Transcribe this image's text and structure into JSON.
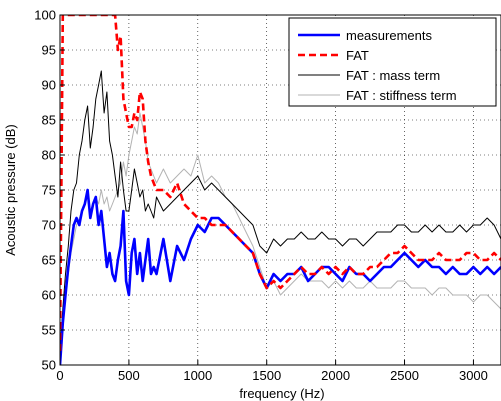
{
  "chart_data": {
    "type": "line",
    "title": "",
    "xlabel": "frequency (Hz)",
    "ylabel": "Acoustic pressure (dB)",
    "xlim": [
      0,
      3200
    ],
    "ylim": [
      50,
      100
    ],
    "xticks": [
      0,
      500,
      1000,
      1500,
      2000,
      2500,
      3000
    ],
    "yticks": [
      50,
      55,
      60,
      65,
      70,
      75,
      80,
      85,
      90,
      95,
      100
    ],
    "grid": true,
    "legend_position": "top-right",
    "series": [
      {
        "name": "measurements",
        "color": "#0000ff",
        "style": "solid-thick",
        "x": [
          0,
          20,
          40,
          60,
          80,
          100,
          120,
          140,
          160,
          180,
          200,
          220,
          240,
          260,
          280,
          300,
          320,
          340,
          360,
          380,
          400,
          420,
          440,
          460,
          480,
          500,
          520,
          540,
          560,
          580,
          600,
          620,
          640,
          660,
          680,
          700,
          750,
          800,
          850,
          900,
          950,
          1000,
          1050,
          1100,
          1150,
          1200,
          1250,
          1300,
          1350,
          1400,
          1450,
          1500,
          1550,
          1600,
          1650,
          1700,
          1750,
          1800,
          1850,
          1900,
          1950,
          2000,
          2050,
          2100,
          2150,
          2200,
          2250,
          2300,
          2350,
          2400,
          2450,
          2500,
          2550,
          2600,
          2650,
          2700,
          2750,
          2800,
          2850,
          2900,
          2950,
          3000,
          3050,
          3100,
          3150,
          3200
        ],
        "y": [
          50,
          56,
          60,
          64,
          67,
          70,
          71,
          70,
          72,
          73,
          75,
          71,
          73,
          74,
          70,
          72,
          68,
          64,
          66,
          63,
          62,
          65,
          67,
          72,
          62,
          60,
          66,
          68,
          63,
          66,
          62,
          65,
          68,
          63,
          64,
          63,
          68,
          62,
          67,
          65,
          68,
          70,
          69,
          71,
          71,
          70,
          69,
          68,
          67,
          66,
          63,
          61,
          63,
          62,
          63,
          63,
          64,
          62,
          63,
          64,
          64,
          63,
          62,
          64,
          63,
          63,
          62,
          63,
          64,
          64,
          65,
          66,
          65,
          64,
          65,
          64,
          64,
          63,
          64,
          63,
          63,
          64,
          63,
          64,
          63,
          64
        ]
      },
      {
        "name": "FAT",
        "color": "#ff0000",
        "style": "dashed-thick",
        "x": [
          0,
          20,
          40,
          60,
          80,
          100,
          120,
          140,
          160,
          180,
          200,
          220,
          240,
          260,
          280,
          300,
          320,
          340,
          360,
          380,
          400,
          420,
          440,
          460,
          480,
          500,
          520,
          540,
          560,
          580,
          600,
          620,
          640,
          660,
          680,
          700,
          750,
          800,
          850,
          900,
          950,
          1000,
          1050,
          1100,
          1150,
          1200,
          1250,
          1300,
          1350,
          1400,
          1450,
          1500,
          1550,
          1600,
          1650,
          1700,
          1750,
          1800,
          1850,
          1900,
          1950,
          2000,
          2050,
          2100,
          2150,
          2200,
          2250,
          2300,
          2350,
          2400,
          2450,
          2500,
          2550,
          2600,
          2650,
          2700,
          2750,
          2800,
          2850,
          2900,
          2950,
          3000,
          3050,
          3100,
          3150,
          3200
        ],
        "y": [
          52,
          100,
          100,
          100,
          100,
          100,
          100,
          100,
          100,
          100,
          100,
          100,
          100,
          100,
          100,
          100,
          100,
          100,
          100,
          100,
          100,
          95,
          97,
          88,
          86,
          84,
          84,
          86,
          85,
          89,
          88,
          82,
          79,
          77,
          76,
          75,
          75,
          74,
          76,
          73,
          72,
          71,
          71,
          70,
          70,
          70,
          69,
          68,
          67,
          66,
          63,
          61,
          62,
          61,
          62,
          63,
          64,
          63,
          63,
          64,
          63,
          64,
          63,
          64,
          63,
          63,
          64,
          64,
          65,
          66,
          66,
          67,
          66,
          65,
          65,
          65,
          66,
          65,
          65,
          65,
          66,
          66,
          65,
          65,
          66,
          65
        ]
      },
      {
        "name": "FAT : mass term",
        "color": "#000000",
        "style": "solid-thin",
        "x": [
          0,
          20,
          40,
          60,
          80,
          100,
          120,
          140,
          160,
          180,
          200,
          220,
          240,
          260,
          280,
          300,
          320,
          340,
          360,
          380,
          400,
          420,
          440,
          460,
          480,
          500,
          520,
          540,
          560,
          580,
          600,
          620,
          640,
          660,
          680,
          700,
          750,
          800,
          850,
          900,
          950,
          1000,
          1050,
          1100,
          1150,
          1200,
          1250,
          1300,
          1350,
          1400,
          1450,
          1500,
          1550,
          1600,
          1650,
          1700,
          1750,
          1800,
          1850,
          1900,
          1950,
          2000,
          2050,
          2100,
          2150,
          2200,
          2250,
          2300,
          2350,
          2400,
          2450,
          2500,
          2550,
          2600,
          2650,
          2700,
          2750,
          2800,
          2850,
          2900,
          2950,
          3000,
          3050,
          3100,
          3150,
          3200
        ],
        "y": [
          52,
          58,
          63,
          67,
          72,
          75,
          76,
          80,
          82,
          85,
          87,
          81,
          84,
          88,
          90,
          92,
          86,
          89,
          82,
          80,
          77,
          74,
          79,
          75,
          72,
          72,
          75,
          78,
          76,
          74,
          75,
          72,
          73,
          72,
          71,
          74,
          72,
          73,
          74,
          75,
          76,
          77,
          75,
          76,
          75,
          74,
          73,
          72,
          71,
          70,
          67,
          66,
          68,
          67,
          68,
          68,
          69,
          68,
          68,
          69,
          68,
          68,
          67,
          68,
          68,
          67,
          68,
          69,
          69,
          69,
          70,
          70,
          69,
          69,
          70,
          69,
          70,
          69,
          69,
          70,
          69,
          70,
          70,
          71,
          70,
          68
        ]
      },
      {
        "name": "FAT : stiffness term",
        "color": "#b3b3b3",
        "style": "solid-thin",
        "x": [
          0,
          20,
          40,
          60,
          80,
          100,
          120,
          140,
          160,
          180,
          200,
          220,
          240,
          260,
          280,
          300,
          320,
          340,
          360,
          380,
          400,
          420,
          440,
          460,
          480,
          500,
          520,
          540,
          560,
          580,
          600,
          620,
          640,
          660,
          680,
          700,
          750,
          800,
          850,
          900,
          950,
          1000,
          1050,
          1100,
          1150,
          1200,
          1250,
          1300,
          1350,
          1400,
          1450,
          1500,
          1550,
          1600,
          1650,
          1700,
          1750,
          1800,
          1850,
          1900,
          1950,
          2000,
          2050,
          2100,
          2150,
          2200,
          2250,
          2300,
          2350,
          2400,
          2450,
          2500,
          2550,
          2600,
          2650,
          2700,
          2750,
          2800,
          2850,
          2900,
          2950,
          3000,
          3050,
          3100,
          3150,
          3200
        ],
        "y": [
          51,
          56,
          60,
          63,
          66,
          68,
          70,
          71,
          72,
          73,
          74,
          72,
          73,
          74,
          73,
          75,
          73,
          74,
          72,
          73,
          74,
          75,
          76,
          79,
          77,
          80,
          82,
          84,
          83,
          86,
          84,
          82,
          79,
          78,
          77,
          76,
          78,
          76,
          77,
          78,
          77,
          80,
          76,
          77,
          76,
          74,
          73,
          71,
          69,
          67,
          64,
          61,
          62,
          60,
          61,
          62,
          63,
          62,
          62,
          62,
          61,
          62,
          61,
          62,
          61,
          61,
          62,
          61,
          61,
          61,
          62,
          62,
          61,
          61,
          61,
          60,
          61,
          61,
          60,
          60,
          60,
          59,
          60,
          60,
          59,
          58
        ]
      }
    ]
  }
}
